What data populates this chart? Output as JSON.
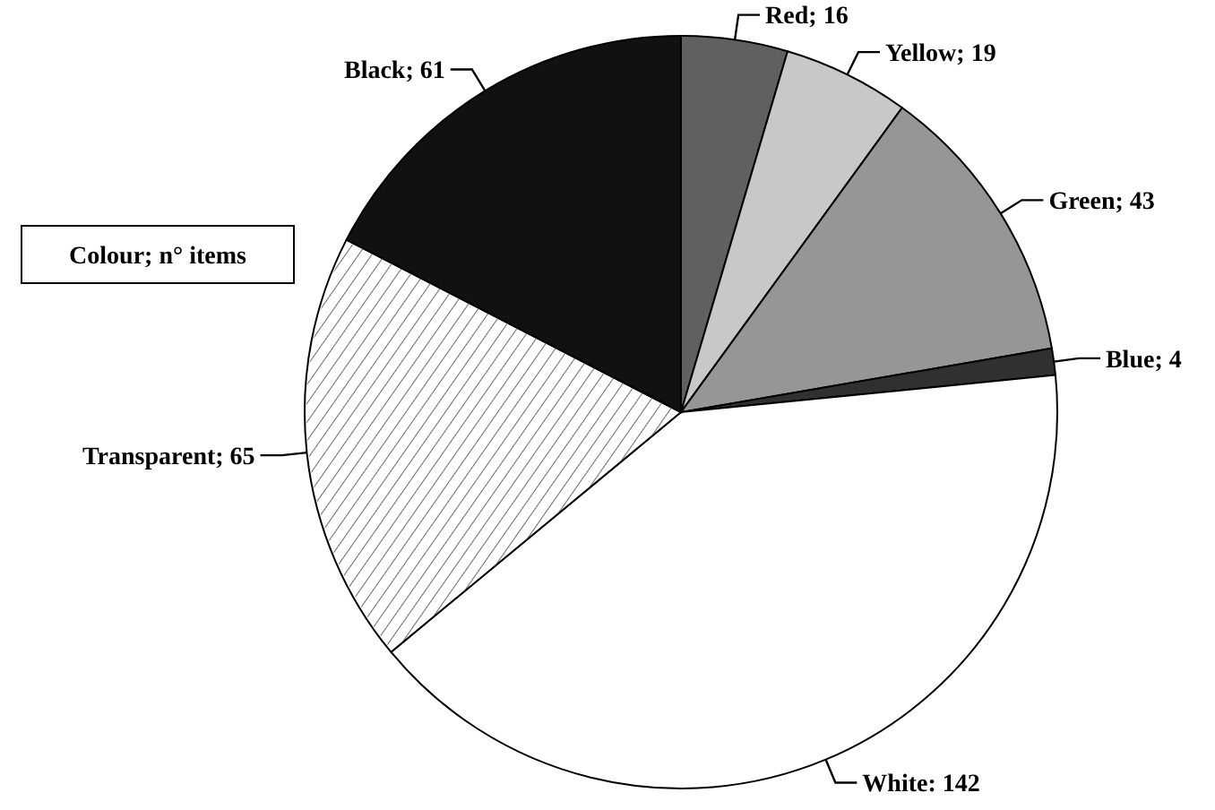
{
  "chart_data": {
    "type": "pie",
    "title": "Colour; n° items",
    "categories": [
      "Red",
      "Yellow",
      "Green",
      "Blue",
      "White",
      "Transparent",
      "Black"
    ],
    "values": [
      16,
      19,
      43,
      4,
      142,
      65,
      61
    ],
    "colors": [
      "#606060",
      "#c8c8c8",
      "#969696",
      "#303030",
      "#ffffff",
      "#ffffff",
      "#111111"
    ],
    "value_labels": [
      "; 16",
      "; 19",
      "; 43",
      "; 4",
      ": 142",
      "; 65",
      "; 61"
    ]
  }
}
